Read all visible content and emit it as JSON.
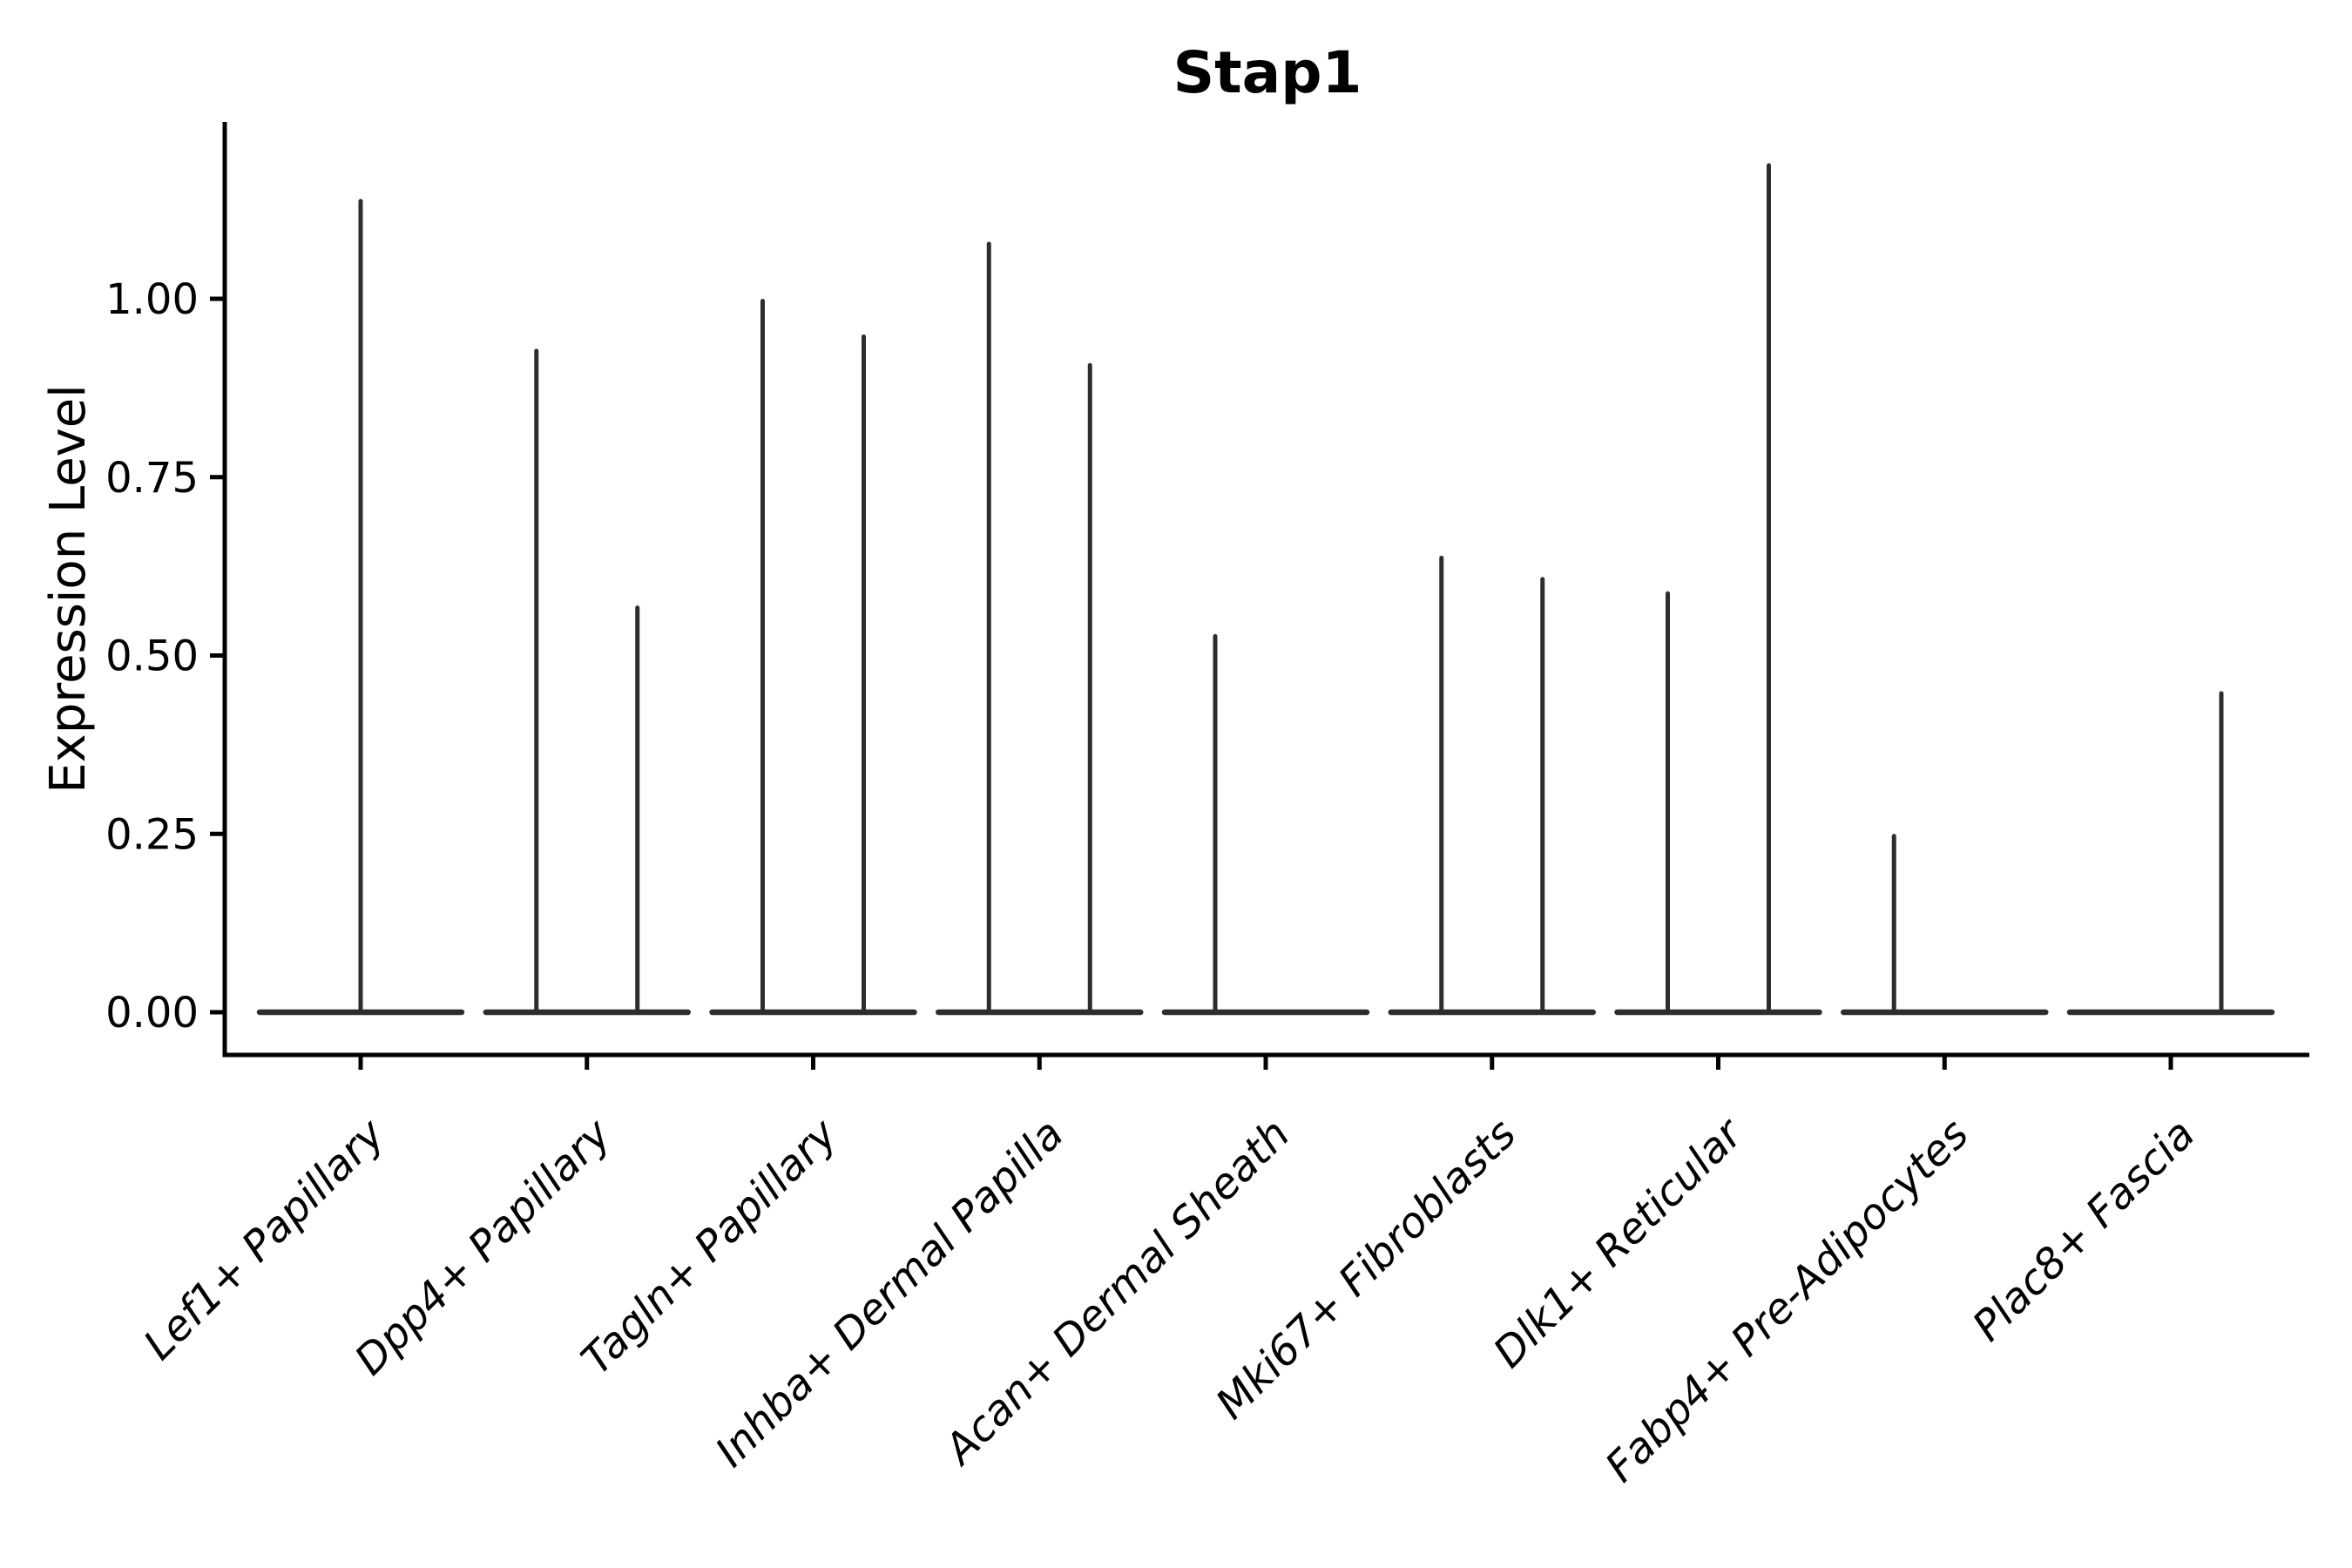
{
  "figure": {
    "background_color": "#ffffff",
    "text_color": "#000000",
    "violin_color": "#2d2d2d",
    "axis_color": "#000000"
  },
  "chart_data": {
    "type": "violin",
    "title": "Stap1",
    "xlabel": "",
    "ylabel": "Expression Level",
    "legend": "none",
    "grid": false,
    "ylim": [
      -0.06,
      1.25
    ],
    "y_ticks": [
      {
        "value": 0.0,
        "label": "0.00"
      },
      {
        "value": 0.25,
        "label": "0.25"
      },
      {
        "value": 0.5,
        "label": "0.50"
      },
      {
        "value": 0.75,
        "label": "0.75"
      },
      {
        "value": 1.0,
        "label": "1.00"
      }
    ],
    "categories": [
      {
        "label": "Lef1+ Papillary",
        "baseline_value": 0,
        "spikes": [
          {
            "position": "center",
            "value": 1.14
          }
        ]
      },
      {
        "label": "Dpp4+ Papillary",
        "baseline_value": 0,
        "spikes": [
          {
            "position": "left",
            "value": 0.93
          },
          {
            "position": "right",
            "value": 0.57
          }
        ]
      },
      {
        "label": "Tagln+ Papillary",
        "baseline_value": 0,
        "spikes": [
          {
            "position": "left",
            "value": 1.0
          },
          {
            "position": "right",
            "value": 0.95
          }
        ]
      },
      {
        "label": "Inhba+ Dermal Papilla",
        "baseline_value": 0,
        "spikes": [
          {
            "position": "left",
            "value": 1.08
          },
          {
            "position": "right",
            "value": 0.91
          }
        ]
      },
      {
        "label": "Acan+ Dermal Sheath",
        "baseline_value": 0,
        "spikes": [
          {
            "position": "left",
            "value": 0.53
          }
        ]
      },
      {
        "label": "Mki67+ Fibroblasts",
        "baseline_value": 0,
        "spikes": [
          {
            "position": "left",
            "value": 0.64
          },
          {
            "position": "right",
            "value": 0.61
          }
        ]
      },
      {
        "label": "Dlk1+ Reticular",
        "baseline_value": 0,
        "spikes": [
          {
            "position": "left",
            "value": 0.59
          },
          {
            "position": "right",
            "value": 1.19
          }
        ]
      },
      {
        "label": "Fabp4+ Pre-Adipocytes",
        "baseline_value": 0,
        "spikes": [
          {
            "position": "left",
            "value": 0.25
          }
        ]
      },
      {
        "label": "Plac8+ Fascia",
        "baseline_value": 0,
        "spikes": [
          {
            "position": "right",
            "value": 0.45
          }
        ]
      }
    ]
  }
}
